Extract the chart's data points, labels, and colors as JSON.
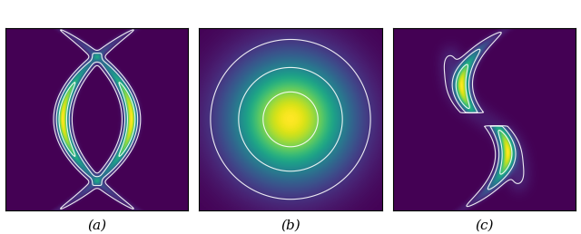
{
  "background_color": "white",
  "cmap": "viridis",
  "figsize": [
    6.4,
    2.58
  ],
  "dpi": 100,
  "labels": [
    "(a)",
    "(b)",
    "(c)"
  ],
  "contour_color": "white",
  "contour_alpha": 0.9,
  "grid_size": 300,
  "panel_bg": "#3b1f6e"
}
